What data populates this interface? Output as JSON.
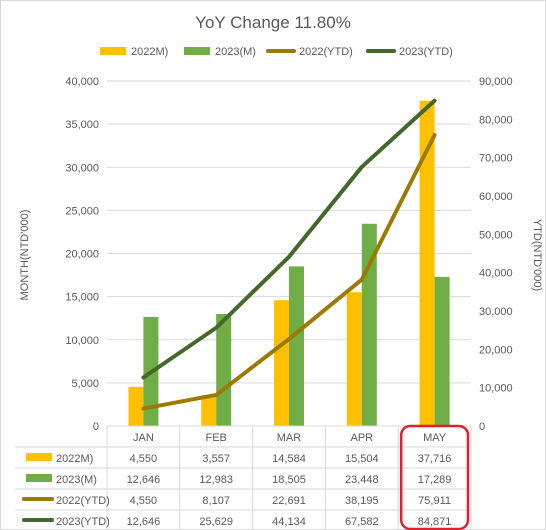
{
  "chart_data": {
    "type": "bar",
    "title": "YoY Change 11.80%",
    "categories": [
      "JAN",
      "FEB",
      "MAR",
      "APR",
      "MAY"
    ],
    "ylabel": "MONTH(NTD'000)",
    "y2label": "YTD(NTD'000)",
    "ylim": [
      0,
      40000
    ],
    "y2lim": [
      0,
      90000
    ],
    "yticks": [
      "0",
      "5,000",
      "10,000",
      "15,000",
      "20,000",
      "25,000",
      "30,000",
      "35,000",
      "40,000"
    ],
    "y2ticks": [
      "0",
      "10,000",
      "20,000",
      "30,000",
      "40,000",
      "50,000",
      "60,000",
      "70,000",
      "80,000",
      "90,000"
    ],
    "grid": true,
    "legend_position": "top",
    "series": [
      {
        "name": "2022M)",
        "kind": "bar",
        "axis": "left",
        "color": "#FFC000",
        "values": [
          4550,
          3557,
          14584,
          15504,
          37716
        ],
        "labels": [
          "4,550",
          "3,557",
          "14,584",
          "15,504",
          "37,716"
        ]
      },
      {
        "name": "2023(M)",
        "kind": "bar",
        "axis": "left",
        "color": "#70AD47",
        "values": [
          12646,
          12983,
          18505,
          23448,
          17289
        ],
        "labels": [
          "12,646",
          "12,983",
          "18,505",
          "23,448",
          "17,289"
        ]
      },
      {
        "name": "2022(YTD)",
        "kind": "line",
        "axis": "right",
        "color": "#9C7A00",
        "values": [
          4550,
          8107,
          22691,
          38195,
          75911
        ],
        "labels": [
          "4,550",
          "8,107",
          "22,691",
          "38,195",
          "75,911"
        ]
      },
      {
        "name": "2023(YTD)",
        "kind": "line",
        "axis": "right",
        "color": "#43682B",
        "values": [
          12646,
          25629,
          44134,
          67582,
          84871
        ],
        "labels": [
          "12,646",
          "25,629",
          "44,134",
          "67,582",
          "84,871"
        ]
      }
    ],
    "highlight": {
      "category": "MAY",
      "color": "#E0202E"
    }
  }
}
